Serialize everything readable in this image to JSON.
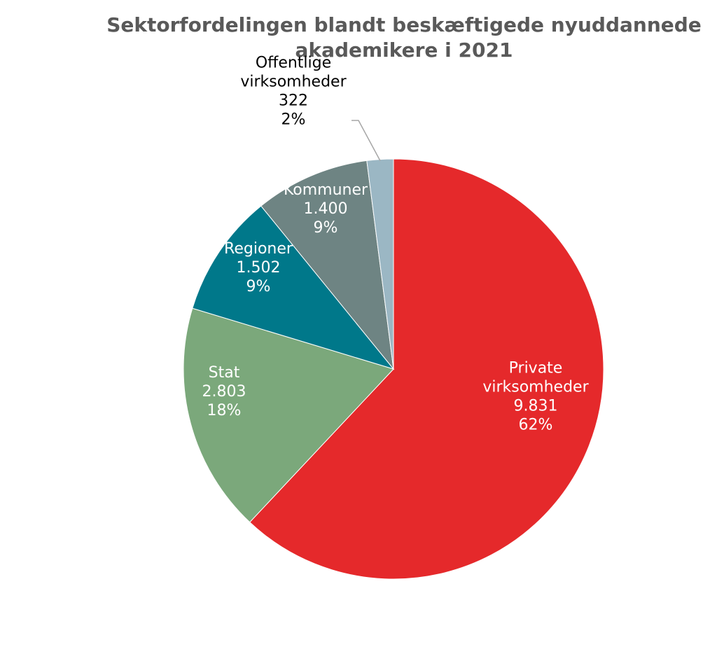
{
  "chart_data": {
    "type": "pie",
    "title_lines": [
      "Sektorfordelingen blandt beskæftigede nyuddannede",
      "akademikere i 2021"
    ],
    "start_angle_deg": 0,
    "direction": "clockwise",
    "slices": [
      {
        "lines": [
          "Private",
          "virksomheder"
        ],
        "value": 9831,
        "value_label": "9.831",
        "percent_label": "62%",
        "color": "#E5292B",
        "label_color": "#ffffff"
      },
      {
        "lines": [
          "Stat"
        ],
        "value": 2803,
        "value_label": "2.803",
        "percent_label": "18%",
        "color": "#7BA87B",
        "label_color": "#ffffff"
      },
      {
        "lines": [
          "Regioner"
        ],
        "value": 1502,
        "value_label": "1.502",
        "percent_label": "9%",
        "color": "#00788A",
        "label_color": "#ffffff"
      },
      {
        "lines": [
          "Kommuner"
        ],
        "value": 1400,
        "value_label": "1.400",
        "percent_label": "9%",
        "color": "#6E8483",
        "label_color": "#ffffff"
      },
      {
        "lines": [
          "Offentlige",
          "virksomheder"
        ],
        "value": 322,
        "value_label": "322",
        "percent_label": "2%",
        "color": "#9BB7C4",
        "label_color": "#000000",
        "outside": true
      }
    ]
  }
}
